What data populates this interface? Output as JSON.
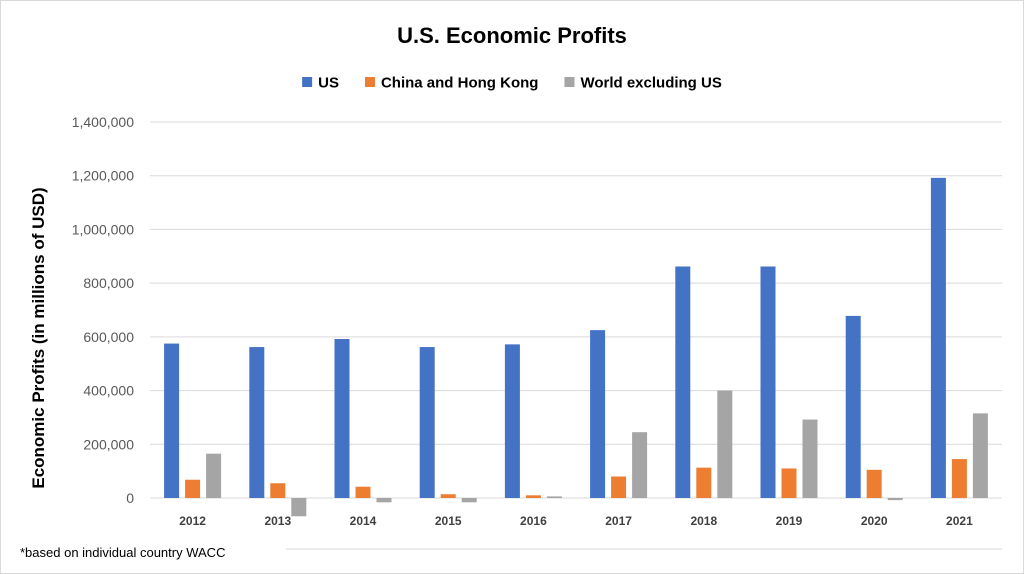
{
  "chart_data": {
    "type": "bar",
    "title": "U.S. Economic Profits",
    "xlabel": "",
    "ylabel": "Economic Profits (in millions of USD)",
    "categories": [
      "2012",
      "2013",
      "2014",
      "2015",
      "2016",
      "2017",
      "2018",
      "2019",
      "2020",
      "2021"
    ],
    "series": [
      {
        "name": "US",
        "color": "#4472C4",
        "values": [
          575000,
          562000,
          592000,
          562000,
          572000,
          625000,
          862000,
          862000,
          678000,
          1192000
        ]
      },
      {
        "name": "China and Hong Kong",
        "color": "#ED7D31",
        "values": [
          68000,
          55000,
          42000,
          14000,
          10000,
          80000,
          113000,
          110000,
          105000,
          145000
        ]
      },
      {
        "name": "World excluding US",
        "color": "#A5A5A5",
        "values": [
          165000,
          -68000,
          -16000,
          -16000,
          6000,
          245000,
          400000,
          292000,
          -8000,
          315000
        ]
      }
    ],
    "ylim": [
      -70000,
      1400000
    ],
    "yticks": [
      0,
      200000,
      400000,
      600000,
      800000,
      1000000,
      1200000,
      1400000
    ],
    "ytick_labels": [
      "0",
      "200,000",
      "400,000",
      "600,000",
      "800,000",
      "1,000,000",
      "1,200,000",
      "1,400,000"
    ],
    "grid": true,
    "legend_position": "top-center",
    "footnote": "*based on individual country WACC"
  }
}
